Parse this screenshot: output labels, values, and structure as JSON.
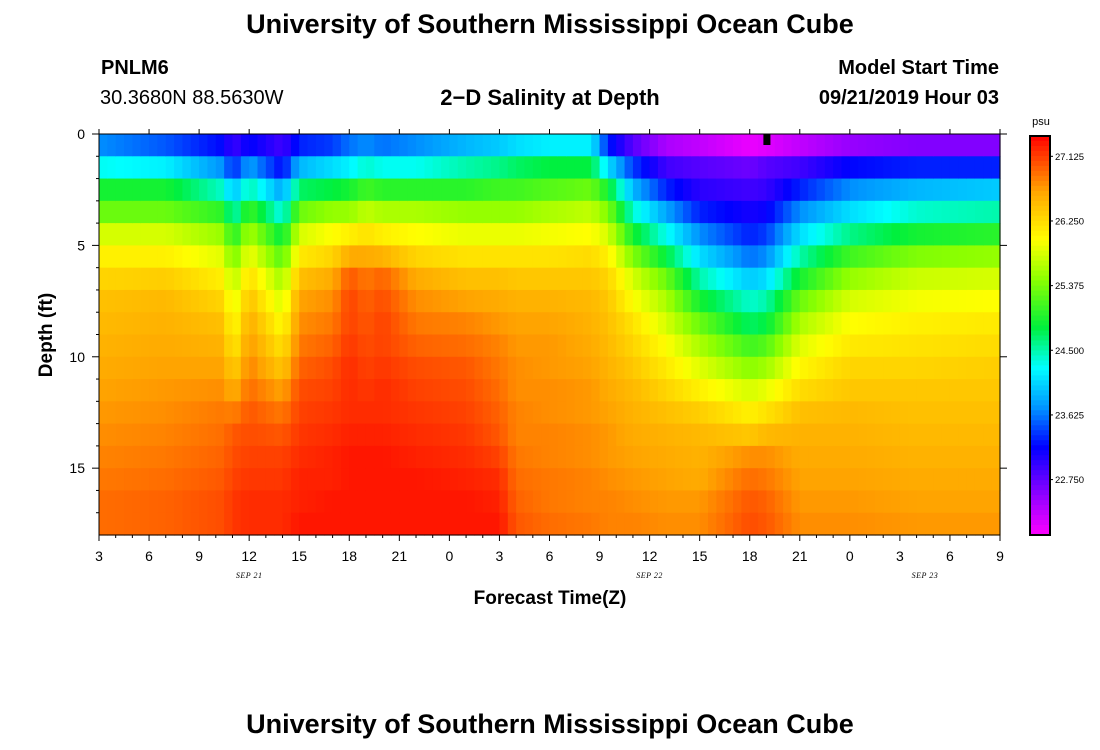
{
  "header": {
    "title_top": "University of Southern Mississippi Ocean Cube",
    "station_id": "PNLM6",
    "coordinates": "30.3680N 88.5630W",
    "plot_title": "2−D Salinity at Depth",
    "start_label": "Model Start Time",
    "start_value": "09/21/2019 Hour 03",
    "title_bottom": "University of Southern Mississippi Ocean Cube"
  },
  "chart_data": {
    "type": "heatmap",
    "title": "2−D Salinity at Depth",
    "xlabel": "Forecast Time(Z)",
    "ylabel": "Depth (ft)",
    "x_tick_labels": [
      "3",
      "6",
      "9",
      "12",
      "15",
      "18",
      "21",
      "0",
      "3",
      "6",
      "9",
      "12",
      "15",
      "18",
      "21",
      "0",
      "3",
      "6",
      "9"
    ],
    "x_hours": [
      3,
      6,
      9,
      12,
      15,
      18,
      21,
      24,
      27,
      30,
      33,
      36,
      39,
      42,
      45,
      48,
      51,
      54,
      57
    ],
    "xlim_hours": [
      3,
      57
    ],
    "date_labels": [
      {
        "label": "SEP 21",
        "hour": 12
      },
      {
        "label": "SEP 22",
        "hour": 36
      },
      {
        "label": "SEP 23",
        "hour": 52.5
      }
    ],
    "y_ticks": [
      0,
      5,
      10,
      15
    ],
    "ylim": [
      0,
      18
    ],
    "depth_levels_ft": [
      0,
      1,
      2,
      3,
      4,
      5,
      6,
      7,
      8,
      9,
      10,
      11,
      12,
      13,
      14,
      15,
      16,
      17
    ],
    "colorbar": {
      "unit": "psu",
      "min": 22.0,
      "max": 27.4,
      "tick_values": [
        27.125,
        26.25,
        25.375,
        24.5,
        23.625,
        22.75
      ],
      "tick_labels": [
        "27.125",
        "26.250",
        "25.375",
        "24.500",
        "23.625",
        "22.750"
      ]
    },
    "current_time_marker_hour": 43,
    "salinity_profiles": [
      {
        "hour": 3,
        "psu": [
          23.7,
          24.3,
          24.9,
          25.3,
          25.8,
          26.1,
          26.3,
          26.45,
          26.5,
          26.55,
          26.6,
          26.65,
          26.7,
          26.75,
          26.8,
          26.85,
          26.9,
          26.9
        ]
      },
      {
        "hour": 7,
        "psu": [
          23.5,
          24.2,
          24.9,
          25.3,
          25.8,
          26.1,
          26.35,
          26.5,
          26.55,
          26.6,
          26.65,
          26.7,
          26.75,
          26.8,
          26.85,
          26.9,
          26.95,
          26.95
        ]
      },
      {
        "hour": 10.5,
        "psu": [
          23.2,
          23.7,
          24.4,
          25.0,
          25.5,
          25.85,
          26.1,
          26.3,
          26.45,
          26.55,
          26.65,
          26.75,
          26.85,
          26.9,
          26.95,
          27.0,
          27.05,
          27.05
        ]
      },
      {
        "hour": 11,
        "psu": [
          22.9,
          23.3,
          23.9,
          24.4,
          24.9,
          25.3,
          25.6,
          25.8,
          25.95,
          26.1,
          26.3,
          26.55,
          26.8,
          27.0,
          27.05,
          27.1,
          27.15,
          27.15
        ]
      },
      {
        "hour": 12,
        "psu": [
          23.2,
          23.8,
          24.5,
          25.1,
          25.6,
          25.95,
          26.25,
          26.45,
          26.6,
          26.7,
          26.8,
          26.9,
          27.0,
          27.05,
          27.1,
          27.15,
          27.2,
          27.2
        ]
      },
      {
        "hour": 14,
        "psu": [
          22.9,
          23.2,
          23.8,
          24.3,
          24.8,
          25.2,
          25.55,
          25.8,
          26.0,
          26.2,
          26.4,
          26.65,
          26.85,
          27.0,
          27.1,
          27.15,
          27.2,
          27.2
        ]
      },
      {
        "hour": 15,
        "psu": [
          23.3,
          23.9,
          24.7,
          25.3,
          25.8,
          26.15,
          26.45,
          26.65,
          26.75,
          26.85,
          26.95,
          27.05,
          27.1,
          27.15,
          27.2,
          27.25,
          27.25,
          27.3
        ]
      },
      {
        "hour": 17,
        "psu": [
          23.4,
          24.1,
          24.8,
          25.5,
          26.0,
          26.3,
          26.6,
          26.75,
          26.85,
          26.95,
          27.05,
          27.1,
          27.15,
          27.2,
          27.25,
          27.25,
          27.3,
          27.3
        ]
      },
      {
        "hour": 18,
        "psu": [
          23.6,
          24.2,
          24.9,
          25.5,
          26.1,
          26.6,
          27.0,
          27.1,
          27.1,
          27.15,
          27.2,
          27.2,
          27.2,
          27.25,
          27.3,
          27.3,
          27.3,
          27.3
        ]
      },
      {
        "hour": 19,
        "psu": [
          23.7,
          24.4,
          25.1,
          25.7,
          26.2,
          26.6,
          26.85,
          26.95,
          27.0,
          27.05,
          27.1,
          27.15,
          27.2,
          27.25,
          27.3,
          27.3,
          27.3,
          27.3
        ]
      },
      {
        "hour": 20,
        "psu": [
          23.6,
          24.3,
          25.0,
          25.6,
          26.1,
          26.55,
          26.95,
          27.05,
          27.1,
          27.1,
          27.15,
          27.2,
          27.2,
          27.25,
          27.3,
          27.3,
          27.3,
          27.3
        ]
      },
      {
        "hour": 22,
        "psu": [
          23.7,
          24.3,
          25.0,
          25.6,
          26.0,
          26.3,
          26.6,
          26.75,
          26.85,
          26.95,
          27.05,
          27.1,
          27.15,
          27.2,
          27.25,
          27.3,
          27.3,
          27.3
        ]
      },
      {
        "hour": 25,
        "psu": [
          23.9,
          24.5,
          25.0,
          25.5,
          25.9,
          26.2,
          26.45,
          26.65,
          26.8,
          26.9,
          27.0,
          27.05,
          27.1,
          27.15,
          27.2,
          27.25,
          27.3,
          27.3
        ]
      },
      {
        "hour": 27,
        "psu": [
          24.0,
          24.6,
          25.1,
          25.5,
          25.9,
          26.2,
          26.45,
          26.6,
          26.7,
          26.8,
          26.85,
          26.9,
          26.95,
          27.0,
          27.1,
          27.2,
          27.25,
          27.3
        ]
      },
      {
        "hour": 28,
        "psu": [
          24.1,
          24.7,
          25.1,
          25.5,
          25.9,
          26.2,
          26.4,
          26.55,
          26.65,
          26.7,
          26.75,
          26.75,
          26.8,
          26.8,
          26.85,
          26.9,
          26.95,
          27.0
        ]
      },
      {
        "hour": 30,
        "psu": [
          24.2,
          24.8,
          25.2,
          25.6,
          25.95,
          26.2,
          26.4,
          26.55,
          26.65,
          26.7,
          26.7,
          26.75,
          26.75,
          26.8,
          26.8,
          26.85,
          26.85,
          26.9
        ]
      },
      {
        "hour": 32.5,
        "psu": [
          24.2,
          24.8,
          25.3,
          25.7,
          26.0,
          26.25,
          26.4,
          26.5,
          26.55,
          26.6,
          26.65,
          26.7,
          26.7,
          26.75,
          26.75,
          26.8,
          26.8,
          26.85
        ]
      },
      {
        "hour": 33.5,
        "psu": [
          23.3,
          24.1,
          24.9,
          25.4,
          25.8,
          26.1,
          26.3,
          26.4,
          26.45,
          26.5,
          26.55,
          26.6,
          26.65,
          26.7,
          26.7,
          26.75,
          26.8,
          26.8
        ]
      },
      {
        "hour": 35,
        "psu": [
          22.8,
          23.4,
          23.9,
          24.4,
          24.9,
          25.4,
          25.8,
          26.0,
          26.2,
          26.3,
          26.4,
          26.5,
          26.55,
          26.6,
          26.65,
          26.7,
          26.75,
          26.8
        ]
      },
      {
        "hour": 37,
        "psu": [
          22.4,
          22.9,
          23.3,
          23.8,
          24.3,
          24.8,
          25.3,
          25.6,
          25.8,
          26.0,
          26.15,
          26.3,
          26.45,
          26.55,
          26.6,
          26.65,
          26.7,
          26.75
        ]
      },
      {
        "hour": 39,
        "psu": [
          22.3,
          22.8,
          23.0,
          23.3,
          23.7,
          24.1,
          24.5,
          24.9,
          25.3,
          25.6,
          25.85,
          26.1,
          26.35,
          26.5,
          26.55,
          26.6,
          26.7,
          26.75
        ]
      },
      {
        "hour": 42,
        "psu": [
          22.1,
          22.7,
          22.9,
          23.1,
          23.3,
          23.6,
          24.0,
          24.4,
          24.7,
          25.1,
          25.45,
          25.8,
          26.1,
          26.4,
          26.75,
          26.9,
          27.0,
          27.05
        ]
      },
      {
        "hour": 43,
        "psu": [
          22.15,
          22.8,
          22.95,
          23.15,
          23.4,
          23.7,
          24.1,
          24.5,
          24.8,
          25.2,
          25.55,
          25.9,
          26.2,
          26.5,
          26.75,
          26.85,
          26.95,
          27.0
        ]
      },
      {
        "hour": 45,
        "psu": [
          22.3,
          22.9,
          23.3,
          23.7,
          24.1,
          24.5,
          24.9,
          25.3,
          25.6,
          25.85,
          26.05,
          26.25,
          26.45,
          26.55,
          26.6,
          26.65,
          26.7,
          26.75
        ]
      },
      {
        "hour": 48,
        "psu": [
          22.5,
          23.2,
          23.7,
          24.1,
          24.6,
          25.1,
          25.5,
          25.8,
          26.0,
          26.15,
          26.3,
          26.4,
          26.5,
          26.55,
          26.6,
          26.65,
          26.7,
          26.75
        ]
      },
      {
        "hour": 52,
        "psu": [
          22.6,
          23.3,
          23.9,
          24.4,
          24.9,
          25.4,
          25.75,
          25.95,
          26.1,
          26.2,
          26.3,
          26.4,
          26.45,
          26.5,
          26.55,
          26.6,
          26.65,
          26.7
        ]
      },
      {
        "hour": 57,
        "psu": [
          22.6,
          23.3,
          24.0,
          24.5,
          25.0,
          25.5,
          25.8,
          26.0,
          26.15,
          26.25,
          26.35,
          26.4,
          26.45,
          26.5,
          26.55,
          26.6,
          26.65,
          26.7
        ]
      }
    ]
  }
}
